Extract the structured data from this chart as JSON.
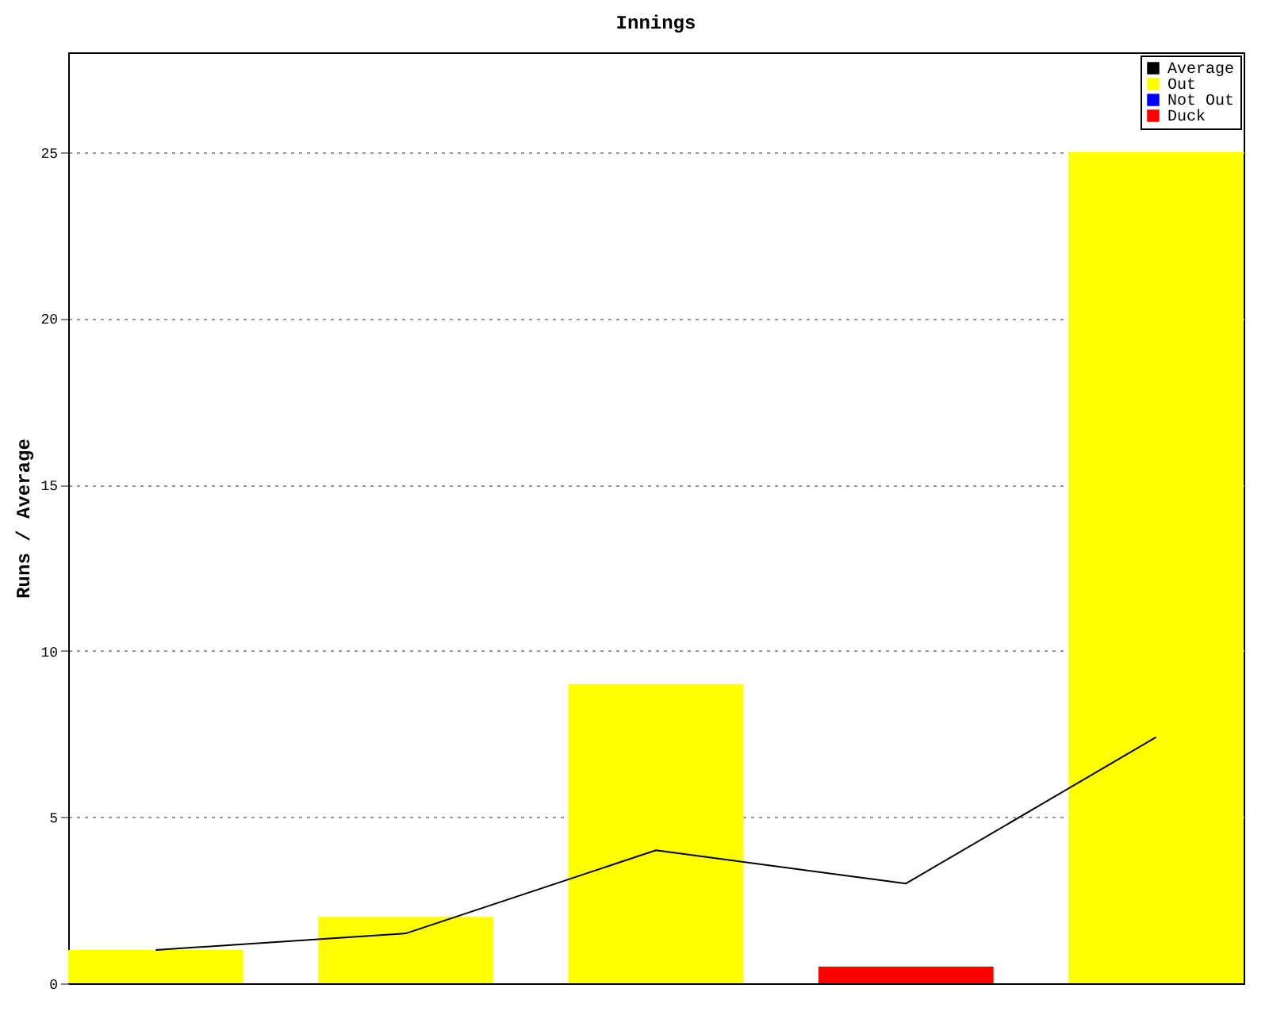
{
  "chart_data": {
    "type": "bar",
    "title": "Innings",
    "ylabel": "Runs / Average",
    "categories": [
      null,
      null,
      null,
      null,
      null
    ],
    "series": [
      {
        "name": "Average",
        "type": "line",
        "color": "#000000",
        "values": [
          1,
          1.5,
          4,
          3,
          7.4
        ]
      },
      {
        "name": "Out",
        "color": "#ffff00",
        "values": [
          1,
          2,
          9,
          null,
          25
        ]
      },
      {
        "name": "Not Out",
        "color": "#0000ff",
        "values": [
          null,
          null,
          null,
          null,
          null
        ]
      },
      {
        "name": "Duck",
        "color": "#ff0000",
        "values": [
          null,
          null,
          null,
          0.5,
          null
        ]
      }
    ],
    "ylim": [
      0,
      28
    ],
    "yticks": [
      0,
      5,
      10,
      15,
      20,
      25
    ],
    "grid": "y",
    "legend": "top right",
    "tick_labels": "y",
    "marker": "none"
  }
}
